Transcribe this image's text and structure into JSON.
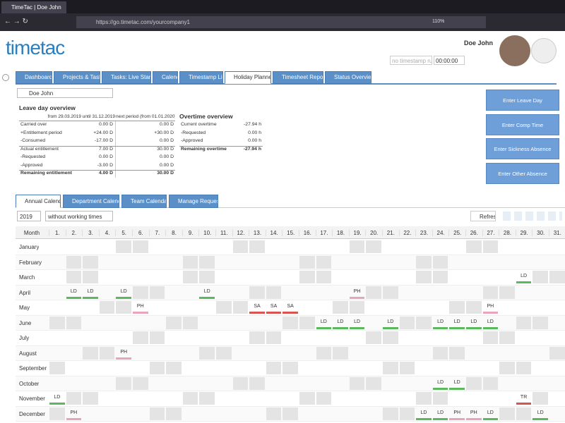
{
  "browser": {
    "tab_title": "TimeTac | Doe John",
    "url": "https://go.timetac.com/yourcompany1",
    "zoom": "110%"
  },
  "header": {
    "logo": "timetac",
    "user_name": "Doe John",
    "timestamp_placeholder": "no timestamp ru...",
    "timer": "00:00:00"
  },
  "nav_tabs": [
    {
      "label": "Dashboard"
    },
    {
      "label": "Projects & Tasks"
    },
    {
      "label": "Tasks: Live Start"
    },
    {
      "label": "Calendar"
    },
    {
      "label": "Timestamp List"
    },
    {
      "label": "Holiday Planner",
      "active": true
    },
    {
      "label": "Timesheet Report"
    },
    {
      "label": "Status Overview"
    }
  ],
  "user_select": "Doe John",
  "leave_overview": {
    "title": "Leave day overview",
    "columns": [
      "from 29.03.2019 until 31.12.2019",
      "next period (from 01.01.2020)"
    ],
    "rows": [
      {
        "label": "Carried over",
        "current": "0.00 D",
        "next": "0.00 D"
      },
      {
        "label": "+Entitlement period",
        "current": "+24.00 D",
        "next": "+30.00 D"
      },
      {
        "label": "-Consumed",
        "current": "-17.00 D",
        "next": "0.00 D"
      },
      {
        "label": "Actual entitlement",
        "current": "7.00 D",
        "next": "30.00 D",
        "separator": true
      },
      {
        "label": "-Requested",
        "current": "0.00 D",
        "next": "0.00 D"
      },
      {
        "label": "-Approved",
        "current": "-3.00 D",
        "next": "0.00 D"
      },
      {
        "label": "Remaining entitlement",
        "current": "4.00 D",
        "next": "30.00 D",
        "bold": true,
        "separator": true
      }
    ]
  },
  "overtime": {
    "title": "Overtime overview",
    "rows": [
      {
        "label": "Current overtime",
        "value": "-27.94 h"
      },
      {
        "label": "-Requested",
        "value": "0.00 h"
      },
      {
        "label": "-Approved",
        "value": "0.00 h"
      },
      {
        "label": "Remaining overtime",
        "value": "-27.94 h",
        "bold": true,
        "separator": true
      }
    ]
  },
  "actions": [
    "Enter Leave Day",
    "Enter Comp Time",
    "Enter Sickness Absence",
    "Enter Other Absence"
  ],
  "sub_tabs": [
    {
      "label": "Annual Calendar",
      "active": true
    },
    {
      "label": "Department Calendar"
    },
    {
      "label": "Team Calendar"
    },
    {
      "label": "Manage Requests"
    }
  ],
  "toolbar": {
    "year": "2019",
    "mode": "without working times",
    "refresh": "Refresh"
  },
  "calendar": {
    "month_header": "Month",
    "days": [
      "1.",
      "2.",
      "3.",
      "4.",
      "5.",
      "6.",
      "7.",
      "8.",
      "9.",
      "10.",
      "11.",
      "12.",
      "13.",
      "14.",
      "15.",
      "16.",
      "17.",
      "18.",
      "19.",
      "20.",
      "21.",
      "22.",
      "23.",
      "24.",
      "25.",
      "26.",
      "27.",
      "28.",
      "29.",
      "30.",
      "31."
    ],
    "colors": {
      "LD": "#5cb85c",
      "PH": "#e8a3bd",
      "SA": "#d9534f",
      "TR": "#d9534f"
    },
    "months": [
      {
        "name": "January"
      },
      {
        "name": "February"
      },
      {
        "name": "March",
        "cells": [
          null,
          null,
          null,
          null,
          null,
          null,
          null,
          null,
          null,
          null,
          null,
          null,
          null,
          null,
          null,
          null,
          null,
          null,
          null,
          null,
          null,
          null,
          null,
          null,
          null,
          null,
          null,
          null,
          "LD",
          null,
          null
        ]
      },
      {
        "name": "April",
        "cells": [
          null,
          "LD",
          "LD",
          null,
          "LD",
          null,
          null,
          null,
          null,
          "LD",
          null,
          null,
          null,
          null,
          null,
          null,
          null,
          null,
          "PH",
          null,
          null,
          null,
          null,
          null,
          null,
          null,
          null,
          null,
          null,
          null,
          null
        ]
      },
      {
        "name": "May",
        "cells": [
          null,
          null,
          null,
          null,
          null,
          "PH",
          null,
          null,
          null,
          null,
          null,
          null,
          "SA",
          "SA",
          "SA",
          null,
          null,
          null,
          null,
          null,
          null,
          null,
          null,
          null,
          null,
          null,
          "PH",
          null,
          null,
          null,
          null
        ]
      },
      {
        "name": "June",
        "cells": [
          null,
          null,
          null,
          null,
          null,
          null,
          null,
          null,
          null,
          null,
          null,
          null,
          null,
          null,
          null,
          null,
          "LD",
          "LD",
          "LD",
          null,
          "LD",
          null,
          null,
          "LD",
          "LD",
          "LD",
          "LD",
          null,
          null,
          null,
          null
        ]
      },
      {
        "name": "July"
      },
      {
        "name": "August",
        "cells": [
          null,
          null,
          null,
          null,
          "PH",
          null,
          null,
          null,
          null,
          null,
          null,
          null,
          null,
          null,
          null,
          null,
          null,
          null,
          null,
          null,
          null,
          null,
          null,
          null,
          null,
          null,
          null,
          null,
          null,
          null,
          null
        ]
      },
      {
        "name": "September"
      },
      {
        "name": "October",
        "cells": [
          null,
          null,
          null,
          null,
          null,
          null,
          null,
          null,
          null,
          null,
          null,
          null,
          null,
          null,
          null,
          null,
          null,
          null,
          null,
          null,
          null,
          null,
          null,
          "LD",
          "LD",
          null,
          null,
          null,
          null,
          null,
          null
        ]
      },
      {
        "name": "November",
        "cells": [
          "LD",
          null,
          null,
          null,
          null,
          null,
          null,
          null,
          null,
          null,
          null,
          null,
          null,
          null,
          null,
          null,
          null,
          null,
          null,
          null,
          null,
          null,
          null,
          null,
          null,
          null,
          null,
          null,
          "TR",
          null,
          null
        ]
      },
      {
        "name": "December",
        "cells": [
          null,
          "PH",
          null,
          null,
          null,
          null,
          null,
          null,
          null,
          null,
          null,
          null,
          null,
          null,
          null,
          null,
          null,
          null,
          null,
          null,
          null,
          null,
          "LD",
          "LD",
          "PH",
          "PH",
          "LD",
          null,
          null,
          "LD",
          null
        ]
      }
    ]
  }
}
